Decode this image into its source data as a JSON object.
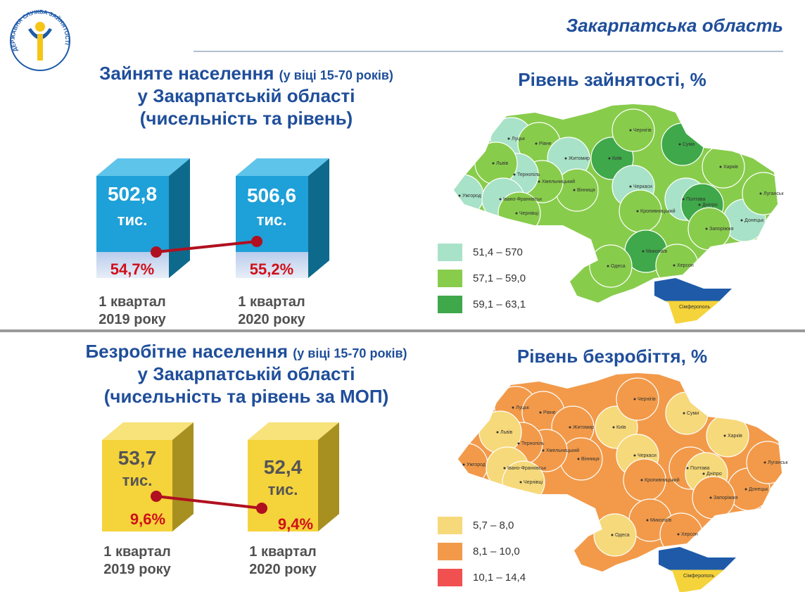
{
  "logo": {
    "text": "ДЕРЖАВНА СЛУЖБА ЗАЙНЯТОСТІ"
  },
  "header": {
    "title": "Закарпатська область"
  },
  "employment": {
    "title_main": "Зайняте населення",
    "title_note": "(у віці 15-70 років)",
    "title_line2": "у Закарпатській області",
    "title_line3": "(чисельність та рівень)",
    "items": [
      {
        "value": "502,8",
        "unit": "тис.",
        "rate": "54,7%",
        "period": "1 квартал",
        "year": "2019 року"
      },
      {
        "value": "506,6",
        "unit": "тис.",
        "rate": "55,2%",
        "period": "1 квартал",
        "year": "2020 року"
      }
    ]
  },
  "unemployment": {
    "title_main": "Безробітне населення",
    "title_note": "(у віці 15-70 років)",
    "title_line2": "у Закарпатській області",
    "title_line3": "(чисельність та рівень за МОП)",
    "items": [
      {
        "value": "53,7",
        "unit": "тис.",
        "rate": "9,6%",
        "period": "1 квартал",
        "year": "2019 року"
      },
      {
        "value": "52,4",
        "unit": "тис.",
        "rate": "9,4%",
        "period": "1 квартал",
        "year": "2020 року"
      }
    ]
  },
  "cities": [
    "Луцьк",
    "Рівне",
    "Житомир",
    "Київ",
    "Чернігів",
    "Суми",
    "Харків",
    "Полтава",
    "Черкаси",
    "Вінниця",
    "Хмельницький",
    "Тернопіль",
    "Львів",
    "Ужгород",
    "Івано-Франківськ",
    "Чернівці",
    "Кропивницький",
    "Дніпро",
    "Донецьк",
    "Луганськ",
    "Запоріжжя",
    "Миколаїв",
    "Херсон",
    "Одеса"
  ],
  "crimea_label": "Сімферополь",
  "employment_map": {
    "title": "Рівень зайнятості, %",
    "legend": [
      {
        "label": "51,4 – 570",
        "color": "#a8e2c8"
      },
      {
        "label": "57,1 – 59,0",
        "color": "#88cc4c"
      },
      {
        "label": "59,1 – 63,1",
        "color": "#3fa84a"
      }
    ],
    "region_levels": [
      0,
      1,
      0,
      2,
      1,
      2,
      1,
      0,
      0,
      1,
      1,
      0,
      1,
      0,
      0,
      1,
      1,
      2,
      0,
      1,
      1,
      2,
      1,
      1
    ]
  },
  "unemployment_map": {
    "title": "Рівень безробіття, %",
    "legend": [
      {
        "label": "5,7 – 8,0",
        "color": "#f6d97a"
      },
      {
        "label": "8,1 – 10,0",
        "color": "#f29a4a"
      },
      {
        "label": "10,1 – 14,4",
        "color": "#f05050"
      }
    ],
    "region_levels": [
      1,
      1,
      1,
      0,
      1,
      0,
      0,
      1,
      0,
      1,
      1,
      1,
      0,
      1,
      0,
      0,
      1,
      0,
      1,
      1,
      1,
      1,
      1,
      0
    ]
  }
}
